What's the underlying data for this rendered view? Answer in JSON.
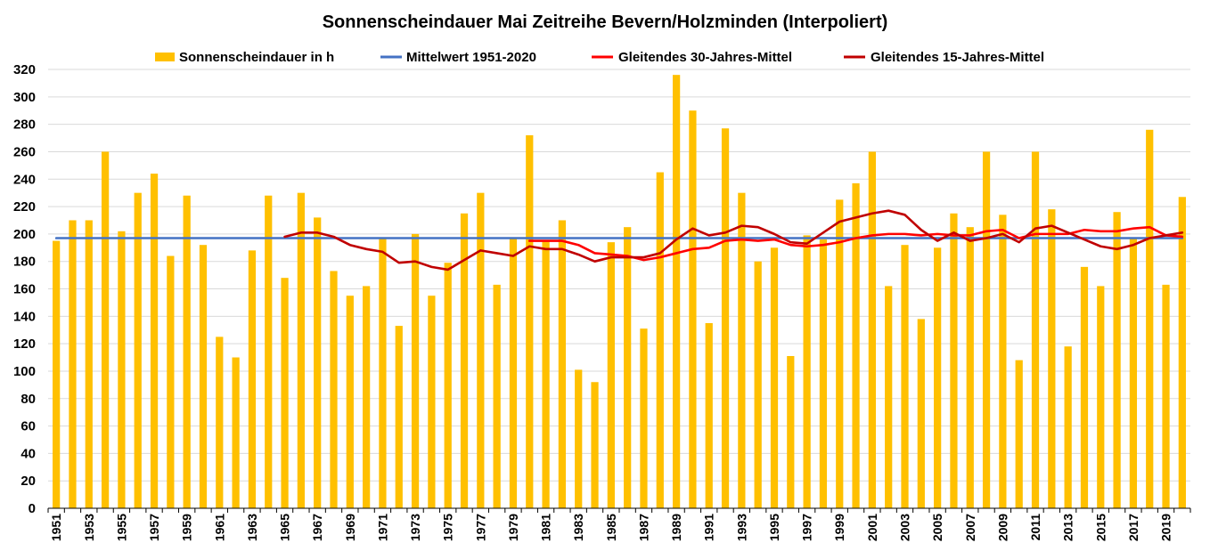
{
  "chart_data": {
    "type": "bar",
    "title": "Sonnenscheindauer Mai Zeitreihe Bevern/Holzminden (Interpoliert)",
    "xlabel": "",
    "ylabel": "",
    "ylim": [
      0,
      320
    ],
    "ytick_step": 20,
    "grid": true,
    "legend_position": "top",
    "colors": {
      "bars": "#FFC000",
      "mean": "#4472C4",
      "ma30": "#FF0000",
      "ma15": "#C00000",
      "grid": "#D9D9D9"
    },
    "legend": [
      "Sonnenscheindauer in h",
      "Mittelwert 1951-2020",
      "Gleitendes 30-Jahres-Mittel",
      "Gleitendes 15-Jahres-Mittel"
    ],
    "yticks": [
      "0",
      "20",
      "40",
      "60",
      "80",
      "100",
      "120",
      "140",
      "160",
      "180",
      "200",
      "220",
      "240",
      "260",
      "280",
      "300",
      "320"
    ],
    "x_tick_labels": [
      "1951",
      "1953",
      "1955",
      "1957",
      "1959",
      "1961",
      "1963",
      "1965",
      "1967",
      "1969",
      "1971",
      "1973",
      "1975",
      "1977",
      "1979",
      "1981",
      "1983",
      "1985",
      "1987",
      "1989",
      "1991",
      "1993",
      "1995",
      "1997",
      "1999",
      "2001",
      "2003",
      "2005",
      "2007",
      "2009",
      "2011",
      "2013",
      "2015",
      "2017",
      "2019"
    ],
    "years": [
      1951,
      1952,
      1953,
      1954,
      1955,
      1956,
      1957,
      1958,
      1959,
      1960,
      1961,
      1962,
      1963,
      1964,
      1965,
      1966,
      1967,
      1968,
      1969,
      1970,
      1971,
      1972,
      1973,
      1974,
      1975,
      1976,
      1977,
      1978,
      1979,
      1980,
      1981,
      1982,
      1983,
      1984,
      1985,
      1986,
      1987,
      1988,
      1989,
      1990,
      1991,
      1992,
      1993,
      1994,
      1995,
      1996,
      1997,
      1998,
      1999,
      2000,
      2001,
      2002,
      2003,
      2004,
      2005,
      2006,
      2007,
      2008,
      2009,
      2010,
      2011,
      2012,
      2013,
      2014,
      2015,
      2016,
      2017,
      2018,
      2019,
      2020
    ],
    "series": [
      {
        "name": "Sonnenscheindauer in h",
        "kind": "bar",
        "values": [
          195,
          210,
          210,
          260,
          202,
          230,
          244,
          184,
          228,
          192,
          125,
          110,
          188,
          228,
          168,
          230,
          212,
          173,
          155,
          162,
          197,
          133,
          200,
          155,
          179,
          215,
          230,
          163,
          197,
          272,
          195,
          210,
          101,
          92,
          194,
          205,
          131,
          245,
          316,
          290,
          135,
          277,
          230,
          180,
          190,
          111,
          199,
          196,
          225,
          237,
          260,
          162,
          192,
          138,
          190,
          215,
          205,
          260,
          214,
          108,
          260,
          218,
          118,
          176,
          162,
          216,
          197,
          276,
          163,
          227
        ]
      },
      {
        "name": "Mittelwert 1951-2020",
        "kind": "line",
        "values": [
          197,
          197,
          197,
          197,
          197,
          197,
          197,
          197,
          197,
          197,
          197,
          197,
          197,
          197,
          197,
          197,
          197,
          197,
          197,
          197,
          197,
          197,
          197,
          197,
          197,
          197,
          197,
          197,
          197,
          197,
          197,
          197,
          197,
          197,
          197,
          197,
          197,
          197,
          197,
          197,
          197,
          197,
          197,
          197,
          197,
          197,
          197,
          197,
          197,
          197,
          197,
          197,
          197,
          197,
          197,
          197,
          197,
          197,
          197,
          197,
          197,
          197,
          197,
          197,
          197,
          197,
          197,
          197,
          197,
          197
        ]
      },
      {
        "name": "Gleitendes 30-Jahres-Mittel",
        "kind": "line",
        "values": [
          null,
          null,
          null,
          null,
          null,
          null,
          null,
          null,
          null,
          null,
          null,
          null,
          null,
          null,
          null,
          null,
          null,
          null,
          null,
          null,
          null,
          null,
          null,
          null,
          null,
          null,
          null,
          null,
          null,
          195,
          195,
          195,
          192,
          186,
          185,
          184,
          181,
          183,
          186,
          189,
          190,
          195,
          196,
          195,
          196,
          192,
          191,
          192,
          194,
          197,
          199,
          200,
          200,
          199,
          200,
          199,
          199,
          202,
          203,
          197,
          200,
          200,
          200,
          203,
          202,
          202,
          204,
          205,
          199,
          198
        ]
      },
      {
        "name": "Gleitendes 15-Jahres-Mittel",
        "kind": "line",
        "values": [
          null,
          null,
          null,
          null,
          null,
          null,
          null,
          null,
          null,
          null,
          null,
          null,
          null,
          null,
          198,
          201,
          201,
          198,
          192,
          189,
          187,
          179,
          180,
          176,
          174,
          181,
          188,
          186,
          184,
          191,
          189,
          189,
          185,
          180,
          183,
          183,
          183,
          186,
          196,
          204,
          199,
          201,
          206,
          205,
          200,
          194,
          193,
          201,
          209,
          212,
          215,
          217,
          214,
          203,
          195,
          201,
          195,
          197,
          200,
          194,
          204,
          206,
          201,
          196,
          191,
          189,
          192,
          197,
          199,
          201
        ]
      }
    ]
  }
}
